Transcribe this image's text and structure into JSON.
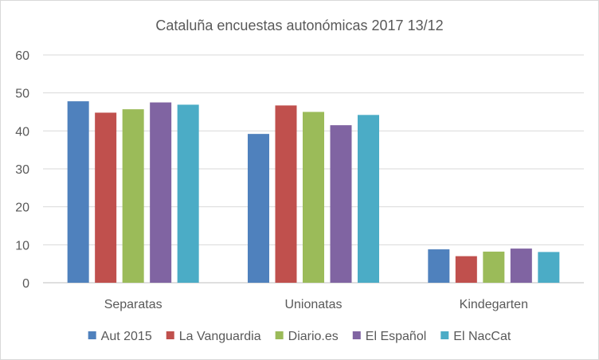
{
  "chart_data": {
    "type": "bar",
    "title": "Cataluña encuestas autonómicas 2017 13/12",
    "categories": [
      "Separatas",
      "Unionatas",
      "Kindegarten"
    ],
    "series": [
      {
        "name": "Aut 2015",
        "color": "#4f81bd",
        "values": [
          47.8,
          39.2,
          8.8
        ]
      },
      {
        "name": "La Vanguardia",
        "color": "#c0504d",
        "values": [
          44.8,
          46.7,
          7.0
        ]
      },
      {
        "name": "Diario.es",
        "color": "#9bbb59",
        "values": [
          45.7,
          45.0,
          8.2
        ]
      },
      {
        "name": "El Español",
        "color": "#8064a2",
        "values": [
          47.5,
          41.5,
          9.0
        ]
      },
      {
        "name": "El NacCat",
        "color": "#4bacc6",
        "values": [
          46.9,
          44.2,
          8.1
        ]
      }
    ],
    "ylim": [
      0,
      60
    ],
    "yticks": [
      0,
      10,
      20,
      30,
      40,
      50,
      60
    ],
    "xlabel": "",
    "ylabel": "",
    "grid": true,
    "legend": "bottom"
  }
}
